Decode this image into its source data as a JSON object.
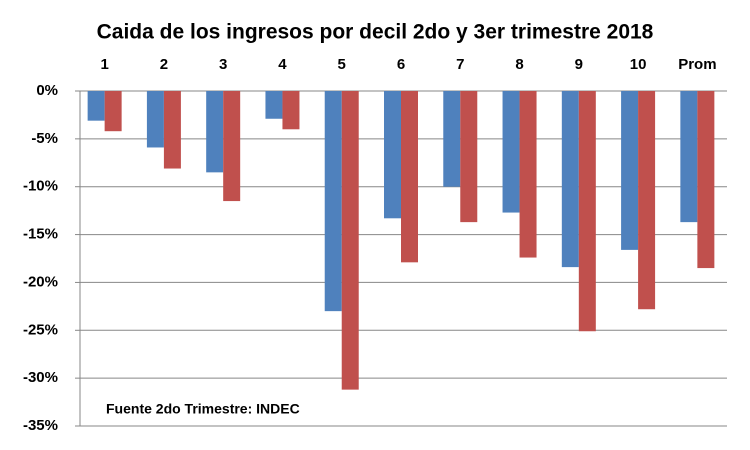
{
  "chart_data": {
    "type": "bar",
    "title": "Caida de los ingresos por decil 2do y 3er trimestre 2018",
    "categories": [
      "1",
      "2",
      "3",
      "4",
      "5",
      "6",
      "7",
      "8",
      "9",
      "10",
      "Prom"
    ],
    "series": [
      {
        "color": "#4f81bd",
        "values": [
          -3.1,
          -5.9,
          -8.5,
          -2.9,
          -23.0,
          -13.3,
          -10.0,
          -12.7,
          -18.4,
          -16.6,
          -13.7
        ]
      },
      {
        "color": "#c0504d",
        "values": [
          -4.2,
          -8.1,
          -11.5,
          -4.0,
          -31.2,
          -17.9,
          -13.7,
          -17.4,
          -25.1,
          -22.8,
          -18.5
        ]
      }
    ],
    "ylim": [
      -35,
      0
    ],
    "yticks": [
      {
        "value": 0,
        "label": "0%"
      },
      {
        "value": -5,
        "label": "-5%"
      },
      {
        "value": -10,
        "label": "-10%"
      },
      {
        "value": -15,
        "label": "-15%"
      },
      {
        "value": -20,
        "label": "-20%"
      },
      {
        "value": -25,
        "label": "-25%"
      },
      {
        "value": -30,
        "label": "-30%"
      },
      {
        "value": -35,
        "label": "-35%"
      }
    ],
    "grid": true,
    "annotation": "Fuente 2do Trimestre: INDEC"
  }
}
